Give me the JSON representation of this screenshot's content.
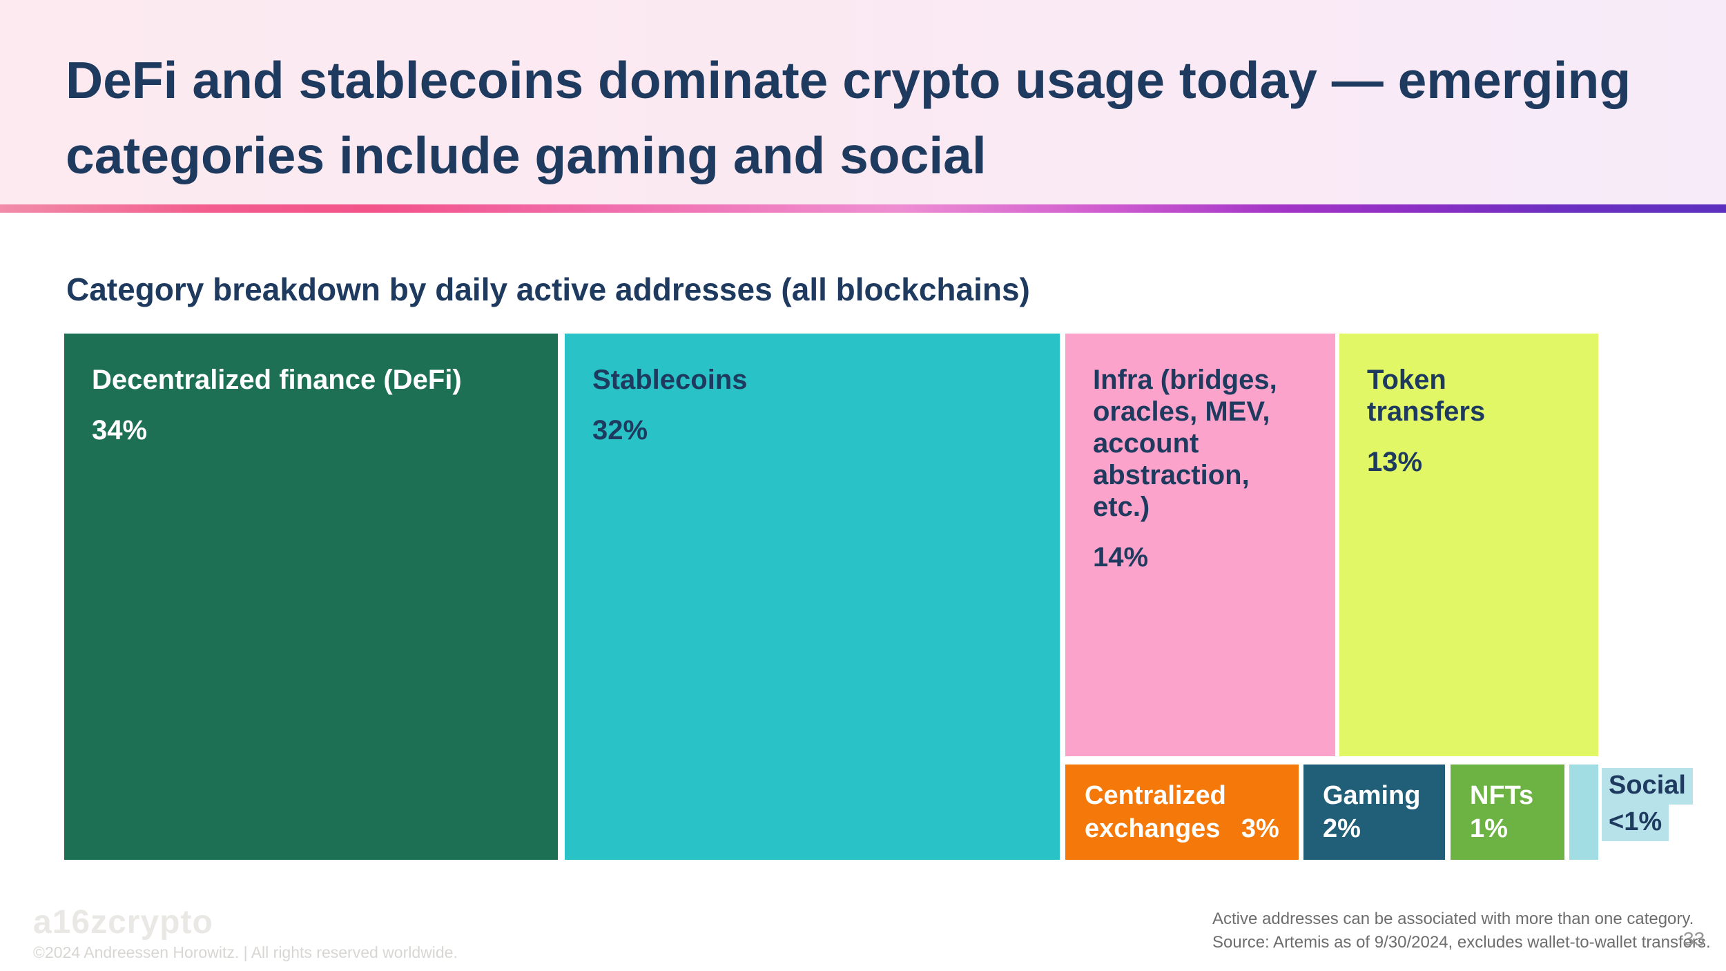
{
  "header": {
    "title_line1": "DeFi and stablecoins dominate crypto usage today — emerging",
    "title_line2": "categories include gaming and social"
  },
  "chart_data": {
    "type": "treemap",
    "title": "Category breakdown by daily active addresses (all blockchains)",
    "unit": "percent of daily active addresses",
    "categories": [
      {
        "label": "Decentralized finance (DeFi)",
        "value": 34,
        "display_value": "34%",
        "color": "#1e7055",
        "text_color": "#ffffff"
      },
      {
        "label": "Stablecoins",
        "value": 32,
        "display_value": "32%",
        "color": "#29c2c6",
        "text_color": "#1e3a5f"
      },
      {
        "label": "Infra (bridges, oracles, MEV, account abstraction, etc.)",
        "label_lines": [
          "Infra (bridges,",
          "oracles, MEV,",
          "account",
          "abstraction, etc.)"
        ],
        "value": 14,
        "display_value": "14%",
        "color": "#fba3cb",
        "text_color": "#1e3a5f"
      },
      {
        "label": "Token transfers",
        "label_lines": [
          "Token",
          "transfers"
        ],
        "value": 13,
        "display_value": "13%",
        "color": "#e1f765",
        "text_color": "#1e3a5f"
      },
      {
        "label": "Centralized exchanges",
        "label_lines": [
          "Centralized",
          "exchanges"
        ],
        "value": 3,
        "display_value": "3%",
        "color": "#f5790a",
        "text_color": "#ffffff"
      },
      {
        "label": "Gaming",
        "value": 2,
        "display_value": "2%",
        "color": "#215e78",
        "text_color": "#ffffff"
      },
      {
        "label": "NFTs",
        "value": 1,
        "display_value": "1%",
        "color": "#6cb344",
        "text_color": "#ffffff"
      },
      {
        "label": "Social",
        "value": "<1",
        "display_value": "<1%",
        "color": "#a3dde4",
        "text_color": "#1e3a5f"
      }
    ],
    "legend_position": "none",
    "grid": false
  },
  "footer": {
    "logo": "a16zcrypto",
    "copyright": "©2024 Andreessen Horowitz.  |  All rights reserved worldwide.",
    "footnote_line1": "Active addresses can be associated with more than one category.",
    "footnote_line2": "Source: Artemis as of 9/30/2024, excludes wallet-to-wallet transfers.",
    "page_number": "33"
  },
  "colors": {
    "title_text": "#1e3a5f",
    "header_bg_left": "#fdeaf1",
    "header_bg_right": "#f7ebf9",
    "accent_bar_gradient": [
      "#f18ca9",
      "#f2538a",
      "#ee8ed2",
      "#a335c7",
      "#5c30bf"
    ],
    "social_highlight": "#b7e2ea"
  }
}
